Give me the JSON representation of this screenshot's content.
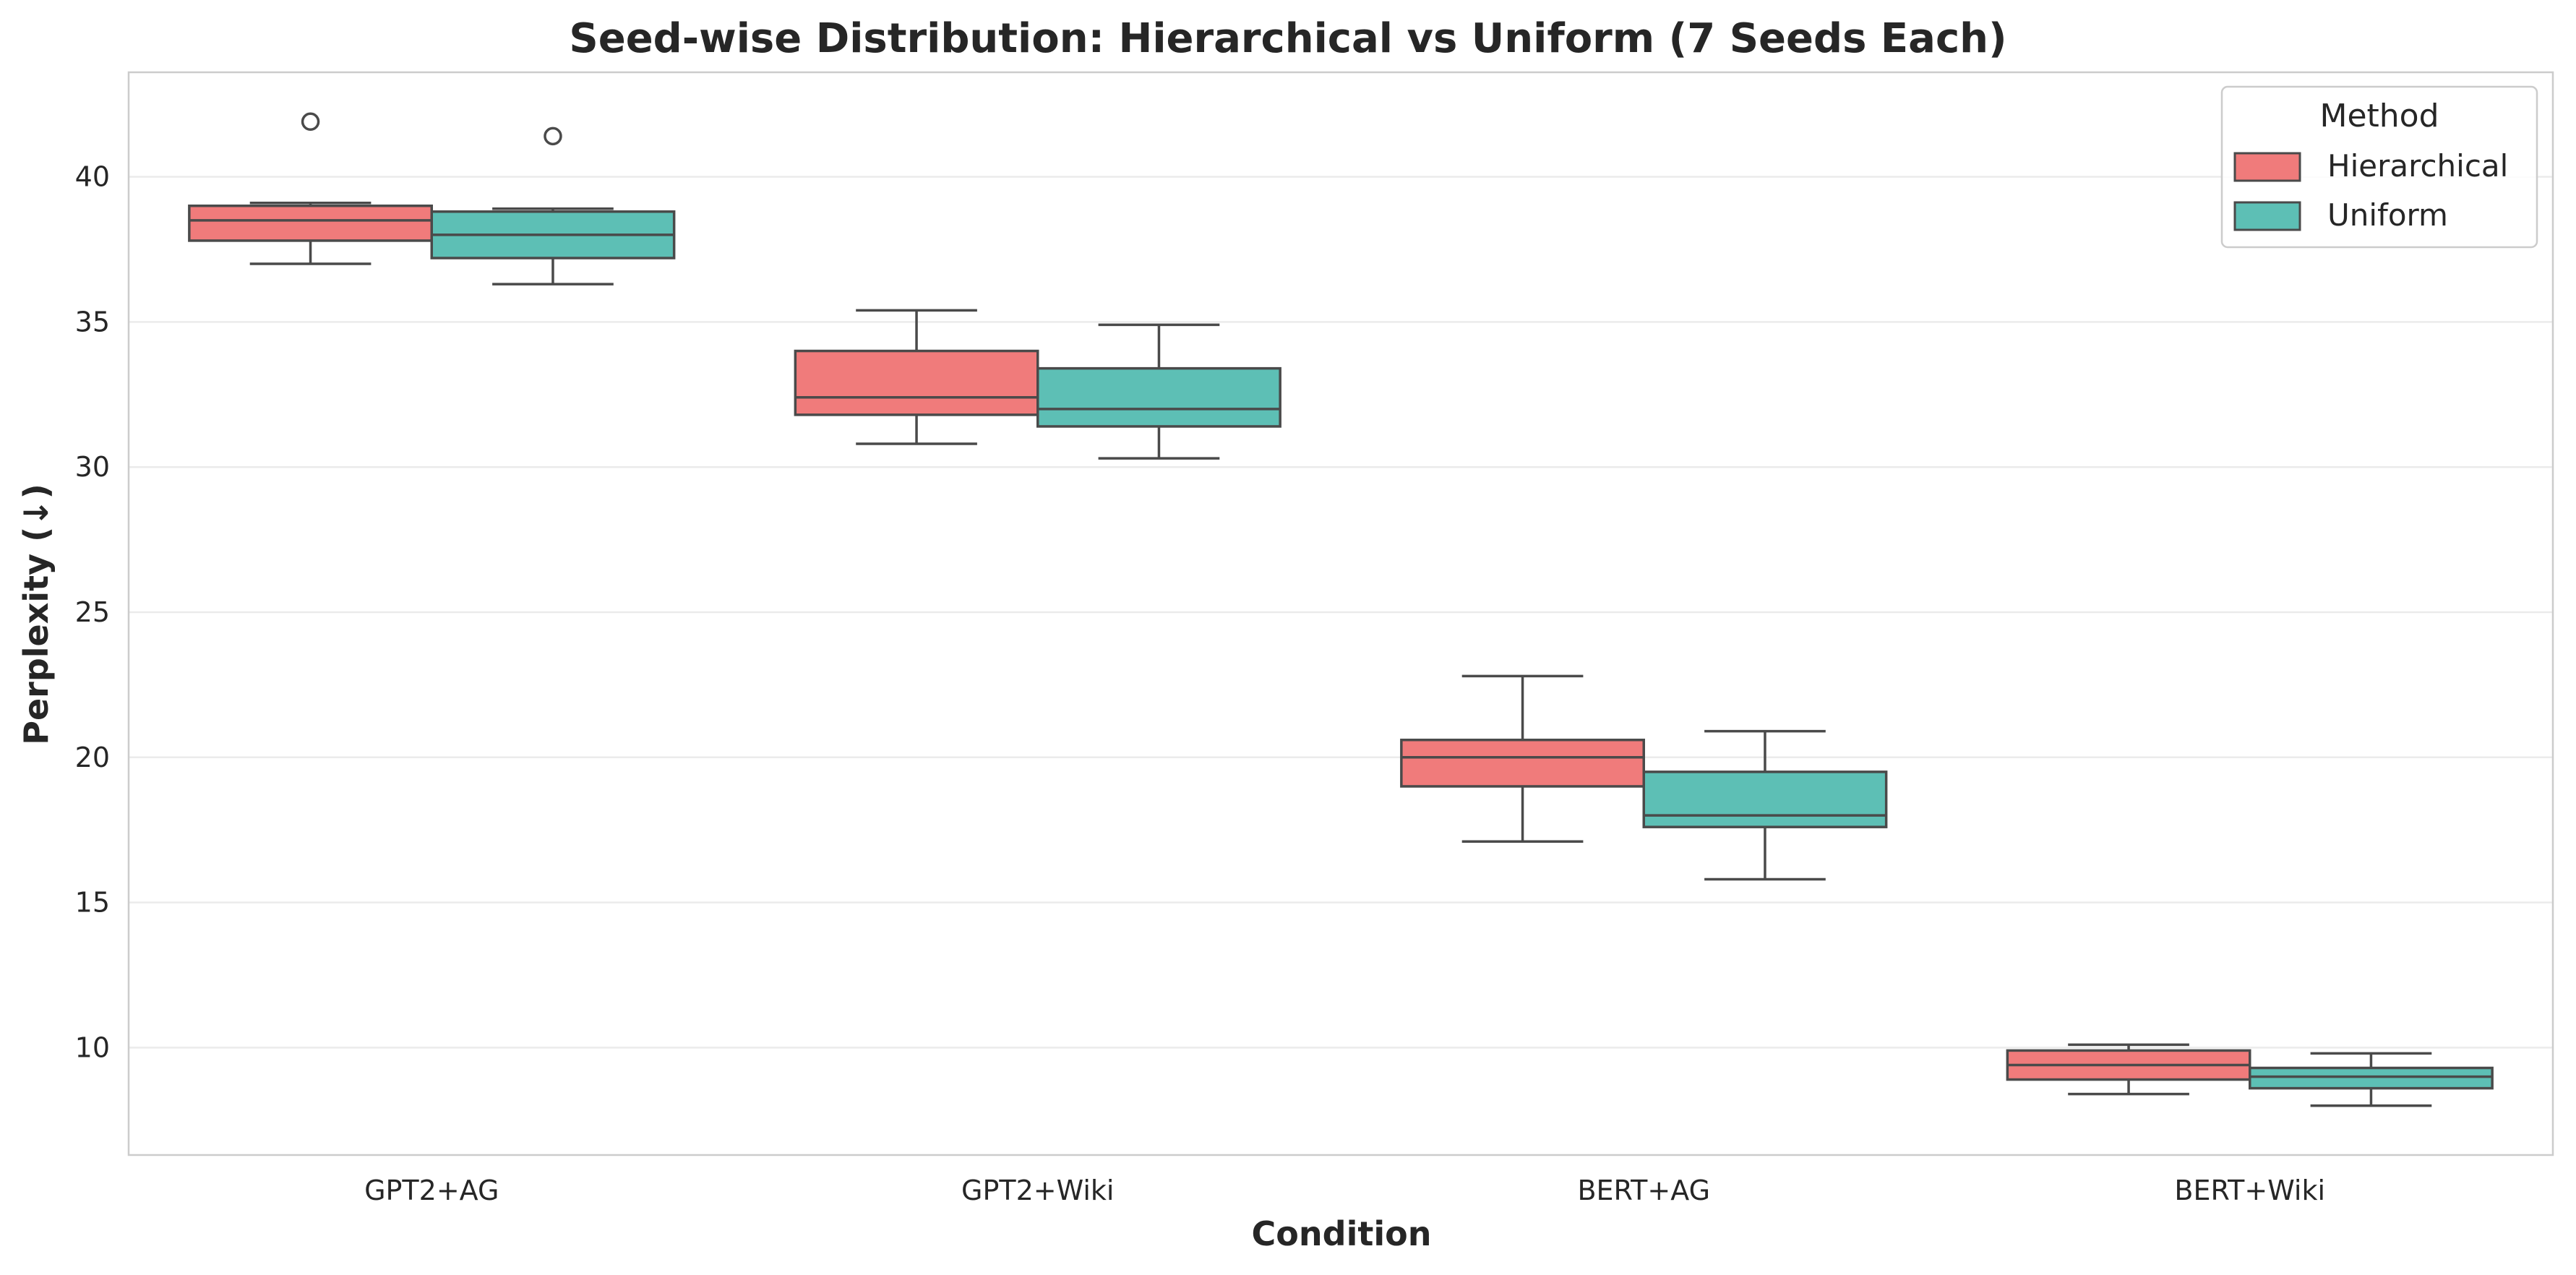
{
  "chart_data": {
    "type": "box",
    "title": "Seed-wise Distribution: Hierarchical vs Uniform (7 Seeds Each)",
    "xlabel": "Condition",
    "ylabel": "Perplexity (↓)",
    "ylim": [
      6.3,
      43.6
    ],
    "yticks": [
      10,
      15,
      20,
      25,
      30,
      35,
      40
    ],
    "grid": "horizontal",
    "categories": [
      "GPT2+AG",
      "GPT2+Wiki",
      "BERT+AG",
      "BERT+Wiki"
    ],
    "legend": {
      "title": "Method",
      "position": "top-right"
    },
    "series": [
      {
        "name": "Hierarchical",
        "color": "#f07b7b",
        "boxes": [
          {
            "whisker_low": 37.0,
            "q1": 37.8,
            "median": 38.5,
            "q3": 39.0,
            "whisker_high": 39.1,
            "outliers": [
              41.9
            ]
          },
          {
            "whisker_low": 30.8,
            "q1": 31.8,
            "median": 32.4,
            "q3": 34.0,
            "whisker_high": 35.4,
            "outliers": []
          },
          {
            "whisker_low": 17.1,
            "q1": 19.0,
            "median": 20.0,
            "q3": 20.6,
            "whisker_high": 22.8,
            "outliers": []
          },
          {
            "whisker_low": 8.4,
            "q1": 8.9,
            "median": 9.4,
            "q3": 9.9,
            "whisker_high": 10.1,
            "outliers": []
          }
        ]
      },
      {
        "name": "Uniform",
        "color": "#5dbfb5",
        "boxes": [
          {
            "whisker_low": 36.3,
            "q1": 37.2,
            "median": 38.0,
            "q3": 38.8,
            "whisker_high": 38.9,
            "outliers": [
              41.4
            ]
          },
          {
            "whisker_low": 30.3,
            "q1": 31.4,
            "median": 32.0,
            "q3": 33.4,
            "whisker_high": 34.9,
            "outliers": []
          },
          {
            "whisker_low": 15.8,
            "q1": 17.6,
            "median": 18.0,
            "q3": 19.5,
            "whisker_high": 20.9,
            "outliers": []
          },
          {
            "whisker_low": 8.0,
            "q1": 8.6,
            "median": 9.0,
            "q3": 9.3,
            "whisker_high": 9.8,
            "outliers": []
          }
        ]
      }
    ]
  }
}
